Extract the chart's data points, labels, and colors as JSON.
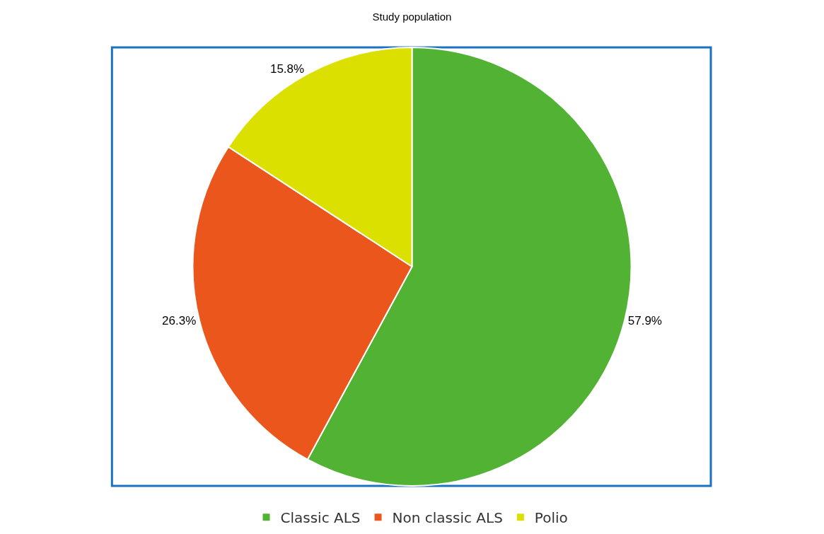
{
  "chart_data": {
    "type": "pie",
    "title": "Study population",
    "categories": [
      "Classic ALS",
      "Non classic ALS",
      "Polio"
    ],
    "values": [
      57.9,
      26.3,
      15.8
    ],
    "value_labels": [
      "57.9%",
      "26.3%",
      "15.8%"
    ],
    "colors": [
      "#52b233",
      "#ea561b",
      "#dce000"
    ],
    "legend": "bottom"
  }
}
